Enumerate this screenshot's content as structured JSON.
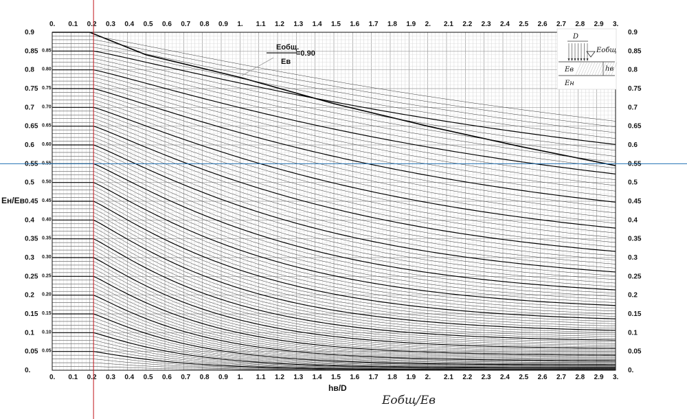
{
  "chart_data": {
    "type": "line",
    "title": "",
    "xlabel": "hв/D",
    "ylabel": "Eн/Eв",
    "xlim": [
      0,
      3
    ],
    "ylim": [
      0,
      0.9
    ],
    "x_ticks": [
      "0.",
      "0.1",
      "0.2",
      "0.3",
      "0.4",
      "0.5",
      "0.6",
      "0.7",
      "0.8",
      "0.9",
      "1.",
      "1.1",
      "1.2",
      "1.3",
      "1.4",
      "1.5",
      "1.6",
      "1.7",
      "1.8",
      "1.9",
      "2.",
      "2.1",
      "2.2",
      "2.3",
      "2.4",
      "2.5",
      "2.6",
      "2.7",
      "2.8",
      "2.9",
      "3."
    ],
    "y_ticks": [
      "0.",
      "0.05",
      "0.1",
      "0.15",
      "0.2",
      "0.25",
      "0.3",
      "0.35",
      "0.4",
      "0.45",
      "0.5",
      "0.55",
      "0.6",
      "0.65",
      "0.7",
      "0.75",
      "0.8",
      "0.85",
      "0.9"
    ],
    "curve_labels": [
      "0.05",
      "0.10",
      "0.15",
      "0.20",
      "0.25",
      "0.30",
      "0.35",
      "0.40",
      "0.45",
      "0.50",
      "0.55",
      "0.60",
      "0.65",
      "0.70",
      "0.75",
      "0.80",
      "0.85"
    ],
    "series_family": "Eобщ/Eв from 0.01 to 0.90 step 0.01 (bold every 0.05)",
    "series_top": {
      "name": "Eобщ/Eв = 0.90",
      "x": [
        0,
        0.2,
        0.5,
        1.0,
        1.5,
        2.0,
        2.5,
        3.0
      ],
      "y": [
        0.9,
        0.9,
        0.84,
        0.78,
        0.71,
        0.65,
        0.595,
        0.545
      ]
    },
    "reference_lines": {
      "vertical_x": 0.22,
      "horizontal_y": 0.55,
      "vertical_color": "#c0151b",
      "horizontal_color": "#1f6fb2"
    },
    "grid": true
  },
  "annotation": {
    "numerator": "Eобщ.",
    "denominator": "Eв",
    "value": "=0.90"
  },
  "inset": {
    "d_label": "D",
    "eobsh_label": "Eобщ",
    "ev_label": "Eв",
    "hv_label": "hв",
    "en_label": "Eн"
  },
  "formula_caption": "Eобщ/Eв"
}
